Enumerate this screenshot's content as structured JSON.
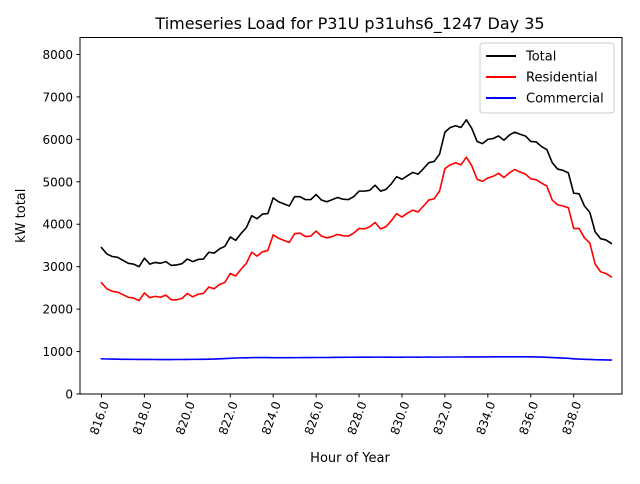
{
  "chart_data": {
    "type": "line",
    "title": "Timeseries Load for P31U p31uhs6_1247  Day 35",
    "xlabel": "Hour of Year",
    "ylabel": "kW total",
    "xlim": [
      815.0,
      840.25
    ],
    "ylim": [
      0,
      8400
    ],
    "x_ticks": [
      816,
      818,
      820,
      822,
      824,
      826,
      828,
      830,
      832,
      834,
      836,
      838
    ],
    "x_tick_labels": [
      "816.0",
      "818.0",
      "820.0",
      "822.0",
      "824.0",
      "826.0",
      "828.0",
      "830.0",
      "832.0",
      "834.0",
      "836.0",
      "838.0"
    ],
    "y_ticks": [
      0,
      1000,
      2000,
      3000,
      4000,
      5000,
      6000,
      7000,
      8000
    ],
    "y_tick_labels": [
      "0",
      "1000",
      "2000",
      "3000",
      "4000",
      "5000",
      "6000",
      "7000",
      "8000"
    ],
    "grid": false,
    "legend": "top-right",
    "x_start": 816.0,
    "x_step": 0.25,
    "series": [
      {
        "name": "Total",
        "color": "#000000",
        "values": [
          3450,
          3300,
          3240,
          3220,
          3150,
          3080,
          3060,
          3000,
          3200,
          3060,
          3100,
          3080,
          3120,
          3030,
          3040,
          3070,
          3180,
          3120,
          3170,
          3180,
          3340,
          3320,
          3420,
          3480,
          3700,
          3620,
          3780,
          3920,
          4200,
          4130,
          4240,
          4250,
          4620,
          4530,
          4480,
          4430,
          4650,
          4650,
          4580,
          4580,
          4700,
          4570,
          4530,
          4580,
          4630,
          4590,
          4580,
          4650,
          4780,
          4780,
          4800,
          4920,
          4780,
          4820,
          4950,
          5120,
          5060,
          5140,
          5220,
          5180,
          5310,
          5450,
          5480,
          5650,
          6170,
          6280,
          6320,
          6280,
          6460,
          6260,
          5950,
          5900,
          6000,
          6020,
          6080,
          5980,
          6100,
          6170,
          6120,
          6080,
          5950,
          5940,
          5830,
          5760,
          5450,
          5300,
          5270,
          5210,
          4730,
          4720,
          4430,
          4280,
          3820,
          3660,
          3630,
          3550
        ]
      },
      {
        "name": "Residential",
        "color": "#ff0000",
        "values": [
          2620,
          2480,
          2420,
          2400,
          2340,
          2280,
          2260,
          2200,
          2380,
          2270,
          2300,
          2280,
          2330,
          2220,
          2220,
          2250,
          2370,
          2290,
          2350,
          2370,
          2520,
          2480,
          2580,
          2630,
          2840,
          2780,
          2940,
          3080,
          3340,
          3250,
          3350,
          3380,
          3750,
          3670,
          3620,
          3570,
          3780,
          3790,
          3710,
          3720,
          3840,
          3720,
          3680,
          3710,
          3760,
          3730,
          3720,
          3790,
          3900,
          3890,
          3940,
          4040,
          3890,
          3940,
          4080,
          4250,
          4170,
          4260,
          4330,
          4290,
          4430,
          4570,
          4600,
          4780,
          5310,
          5400,
          5450,
          5400,
          5580,
          5380,
          5060,
          5010,
          5090,
          5130,
          5200,
          5100,
          5210,
          5290,
          5230,
          5180,
          5070,
          5050,
          4970,
          4900,
          4570,
          4460,
          4430,
          4390,
          3900,
          3900,
          3680,
          3560,
          3060,
          2880,
          2840,
          2760
        ]
      },
      {
        "name": "Commercial",
        "color": "#0000ff",
        "values": [
          830,
          825,
          822,
          820,
          818,
          817,
          816,
          815,
          815,
          814,
          813,
          812,
          812,
          812,
          813,
          813,
          815,
          816,
          817,
          818,
          820,
          822,
          828,
          835,
          842,
          848,
          851,
          853,
          857,
          858,
          858,
          858,
          856,
          855,
          855,
          855,
          857,
          857,
          858,
          858,
          860,
          860,
          860,
          862,
          864,
          865,
          866,
          866,
          868,
          868,
          868,
          869,
          869,
          868,
          867,
          866,
          868,
          869,
          869,
          868,
          869,
          870,
          869,
          869,
          872,
          872,
          872,
          872,
          874,
          873,
          873,
          873,
          874,
          875,
          876,
          877,
          877,
          877,
          877,
          876,
          875,
          873,
          870,
          865,
          858,
          852,
          846,
          840,
          830,
          822,
          818,
          814,
          808,
          805,
          803,
          800
        ]
      }
    ]
  }
}
